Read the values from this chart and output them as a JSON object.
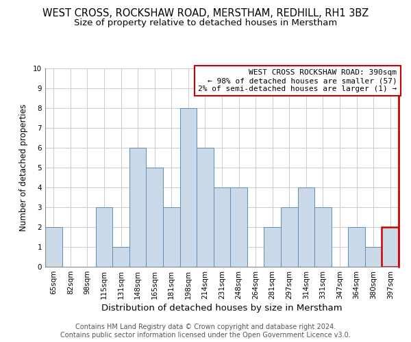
{
  "title": "WEST CROSS, ROCKSHAW ROAD, MERSTHAM, REDHILL, RH1 3BZ",
  "subtitle": "Size of property relative to detached houses in Merstham",
  "xlabel": "Distribution of detached houses by size in Merstham",
  "ylabel": "Number of detached properties",
  "bar_labels": [
    "65sqm",
    "82sqm",
    "98sqm",
    "115sqm",
    "131sqm",
    "148sqm",
    "165sqm",
    "181sqm",
    "198sqm",
    "214sqm",
    "231sqm",
    "248sqm",
    "264sqm",
    "281sqm",
    "297sqm",
    "314sqm",
    "331sqm",
    "347sqm",
    "364sqm",
    "380sqm",
    "397sqm"
  ],
  "bar_values": [
    2,
    0,
    0,
    3,
    1,
    6,
    5,
    3,
    8,
    6,
    4,
    4,
    0,
    2,
    3,
    4,
    3,
    0,
    2,
    1,
    2
  ],
  "bar_color": "#c9d9e8",
  "bar_edge_color": "#5b8db8",
  "highlight_bar_index": 20,
  "highlight_bar_edge_color": "#cc0000",
  "ylim": [
    0,
    10
  ],
  "yticks": [
    0,
    1,
    2,
    3,
    4,
    5,
    6,
    7,
    8,
    9,
    10
  ],
  "grid_color": "#cccccc",
  "annotation_line1": "WEST CROSS ROCKSHAW ROAD: 390sqm",
  "annotation_line2": "← 98% of detached houses are smaller (57)",
  "annotation_line3": "2% of semi-detached houses are larger (1) →",
  "footer_line1": "Contains HM Land Registry data © Crown copyright and database right 2024.",
  "footer_line2": "Contains public sector information licensed under the Open Government Licence v3.0.",
  "title_fontsize": 10.5,
  "subtitle_fontsize": 9.5,
  "xlabel_fontsize": 9.5,
  "ylabel_fontsize": 8.5,
  "tick_fontsize": 7.5,
  "annotation_fontsize": 8,
  "footer_fontsize": 7
}
